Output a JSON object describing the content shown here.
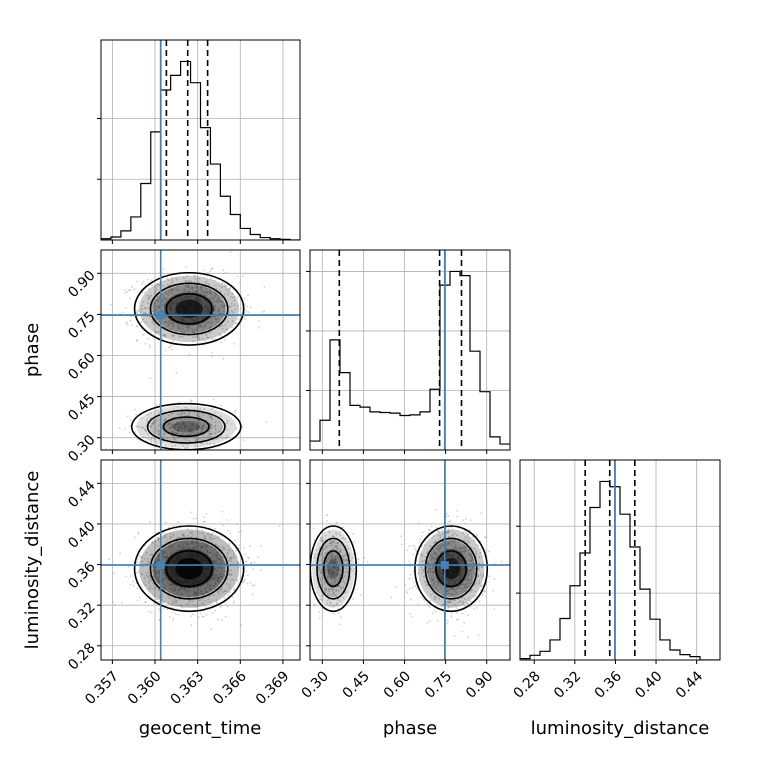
{
  "chart_data": {
    "type": "corner",
    "parameters": [
      "geocent_time",
      "phase",
      "luminosity_distance"
    ],
    "injection": {
      "geocent_time": 0.3604,
      "phase": 0.747,
      "luminosity_distance": 0.3595
    },
    "colors": {
      "injection_line": "#4682b4",
      "histogram": "#000000",
      "grid": "#b0b0b0",
      "scatter_points": "#9a9a9a"
    },
    "grid": true,
    "panels": [
      {
        "id": "hist-geocent_time",
        "type": "histogram",
        "x_param": "geocent_time",
        "xlim": [
          0.3562,
          0.3702
        ],
        "x_ticks": [
          0.357,
          0.36,
          0.363,
          0.366,
          0.369
        ],
        "x_tick_labels": [
          "0.357",
          "0.360",
          "0.363",
          "0.366",
          "0.369"
        ],
        "bin_edges": [
          0.3562,
          0.3569,
          0.3576,
          0.3583,
          0.359,
          0.3597,
          0.3604,
          0.3611,
          0.3618,
          0.3625,
          0.3632,
          0.3639,
          0.3646,
          0.3653,
          0.366,
          0.3667,
          0.3674,
          0.3681,
          0.3688,
          0.3695,
          0.3702
        ],
        "counts": [
          2,
          5,
          15,
          38,
          93,
          178,
          247,
          271,
          294,
          259,
          185,
          125,
          72,
          42,
          19,
          9,
          4,
          2,
          1,
          0
        ],
        "quantiles": [
          0.3608,
          0.3623,
          0.3637
        ]
      },
      {
        "id": "scatter-geocent_time-phase",
        "type": "density2d",
        "x_param": "geocent_time",
        "y_param": "phase",
        "xlim": [
          0.3562,
          0.3702
        ],
        "ylim": [
          0.255,
          0.985
        ],
        "y_ticks": [
          0.3,
          0.45,
          0.6,
          0.75,
          0.9
        ],
        "y_tick_labels": [
          "0.30",
          "0.45",
          "0.60",
          "0.75",
          "0.90"
        ],
        "modes": [
          {
            "center": [
              0.3624,
              0.77
            ],
            "sx": 0.0016,
            "sy": 0.055,
            "weight": 0.72
          },
          {
            "center": [
              0.3622,
              0.34
            ],
            "sx": 0.0016,
            "sy": 0.035,
            "weight": 0.28
          }
        ]
      },
      {
        "id": "hist-phase",
        "type": "histogram",
        "x_param": "phase",
        "xlim": [
          0.255,
          0.985
        ],
        "bin_edges": [
          0.255,
          0.2915,
          0.328,
          0.3645,
          0.401,
          0.4375,
          0.474,
          0.5105,
          0.547,
          0.5835,
          0.62,
          0.6565,
          0.693,
          0.7295,
          0.766,
          0.8025,
          0.839,
          0.8755,
          0.912,
          0.9485,
          0.985
        ],
        "counts": [
          15,
          50,
          185,
          130,
          75,
          72,
          64,
          63,
          62,
          58,
          59,
          64,
          102,
          277,
          300,
          293,
          166,
          98,
          22,
          10
        ],
        "quantiles": [
          0.362,
          0.728,
          0.808
        ]
      },
      {
        "id": "scatter-geocent_time-luminosity_distance",
        "type": "density2d",
        "x_param": "geocent_time",
        "y_param": "luminosity_distance",
        "xlim": [
          0.3562,
          0.3702
        ],
        "ylim": [
          0.266,
          0.463
        ],
        "y_ticks": [
          0.28,
          0.32,
          0.36,
          0.4,
          0.44
        ],
        "y_tick_labels": [
          "0.28",
          "0.32",
          "0.36",
          "0.40",
          "0.44"
        ],
        "modes": [
          {
            "center": [
              0.3624,
              0.356
            ],
            "sx": 0.0016,
            "sy": 0.0175,
            "weight": 1.0
          }
        ]
      },
      {
        "id": "scatter-phase-luminosity_distance",
        "type": "density2d",
        "x_param": "phase",
        "y_param": "luminosity_distance",
        "xlim": [
          0.255,
          0.985
        ],
        "ylim": [
          0.266,
          0.463
        ],
        "x_ticks": [
          0.3,
          0.45,
          0.6,
          0.75,
          0.9
        ],
        "x_tick_labels": [
          "0.30",
          "0.45",
          "0.60",
          "0.75",
          "0.90"
        ],
        "modes": [
          {
            "center": [
              0.77,
              0.356
            ],
            "sx": 0.055,
            "sy": 0.0175,
            "weight": 0.72
          },
          {
            "center": [
              0.34,
              0.356
            ],
            "sx": 0.035,
            "sy": 0.0175,
            "weight": 0.28
          }
        ]
      },
      {
        "id": "hist-luminosity_distance",
        "type": "histogram",
        "x_param": "luminosity_distance",
        "xlim": [
          0.266,
          0.463
        ],
        "x_ticks": [
          0.28,
          0.32,
          0.36,
          0.4,
          0.44
        ],
        "x_tick_labels": [
          "0.28",
          "0.32",
          "0.36",
          "0.40",
          "0.44"
        ],
        "bin_edges": [
          0.266,
          0.27585,
          0.2857,
          0.29555,
          0.3054,
          0.31525,
          0.3251,
          0.33495,
          0.3448,
          0.35465,
          0.3645,
          0.37435,
          0.3842,
          0.39405,
          0.4039,
          0.41375,
          0.4236,
          0.43345,
          0.4433,
          0.45315,
          0.463
        ],
        "counts": [
          2,
          7,
          13,
          30,
          62,
          111,
          160,
          228,
          267,
          259,
          218,
          169,
          106,
          61,
          30,
          15,
          8,
          5,
          0,
          0
        ],
        "quantiles": [
          0.3302,
          0.3544,
          0.3791
        ]
      }
    ],
    "xlabels": [
      "geocent_time",
      "phase",
      "luminosity_distance"
    ],
    "ylabels": [
      "phase",
      "luminosity_distance"
    ]
  }
}
